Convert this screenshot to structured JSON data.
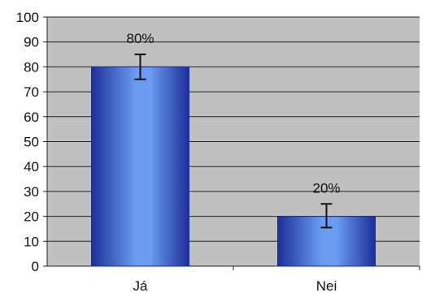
{
  "chart_data": {
    "type": "bar",
    "categories": [
      "Já",
      "Nei"
    ],
    "values": [
      80,
      20
    ],
    "data_labels": [
      "80%",
      "20%"
    ],
    "error_bars": [
      {
        "low": 75,
        "high": 85
      },
      {
        "low": 15.5,
        "high": 25
      }
    ],
    "ylim": [
      0,
      100
    ],
    "yticks": [
      "0",
      "10",
      "20",
      "30",
      "40",
      "50",
      "60",
      "70",
      "80",
      "90",
      "100"
    ],
    "grid": true,
    "legend": "none",
    "colors": {
      "plot_background": "#c0c0c0",
      "gridline": "#222222",
      "bar_edge": "#1a2a8a",
      "bar_center": "#6a9cf0",
      "bar_dark": "#1c2f9a"
    }
  }
}
